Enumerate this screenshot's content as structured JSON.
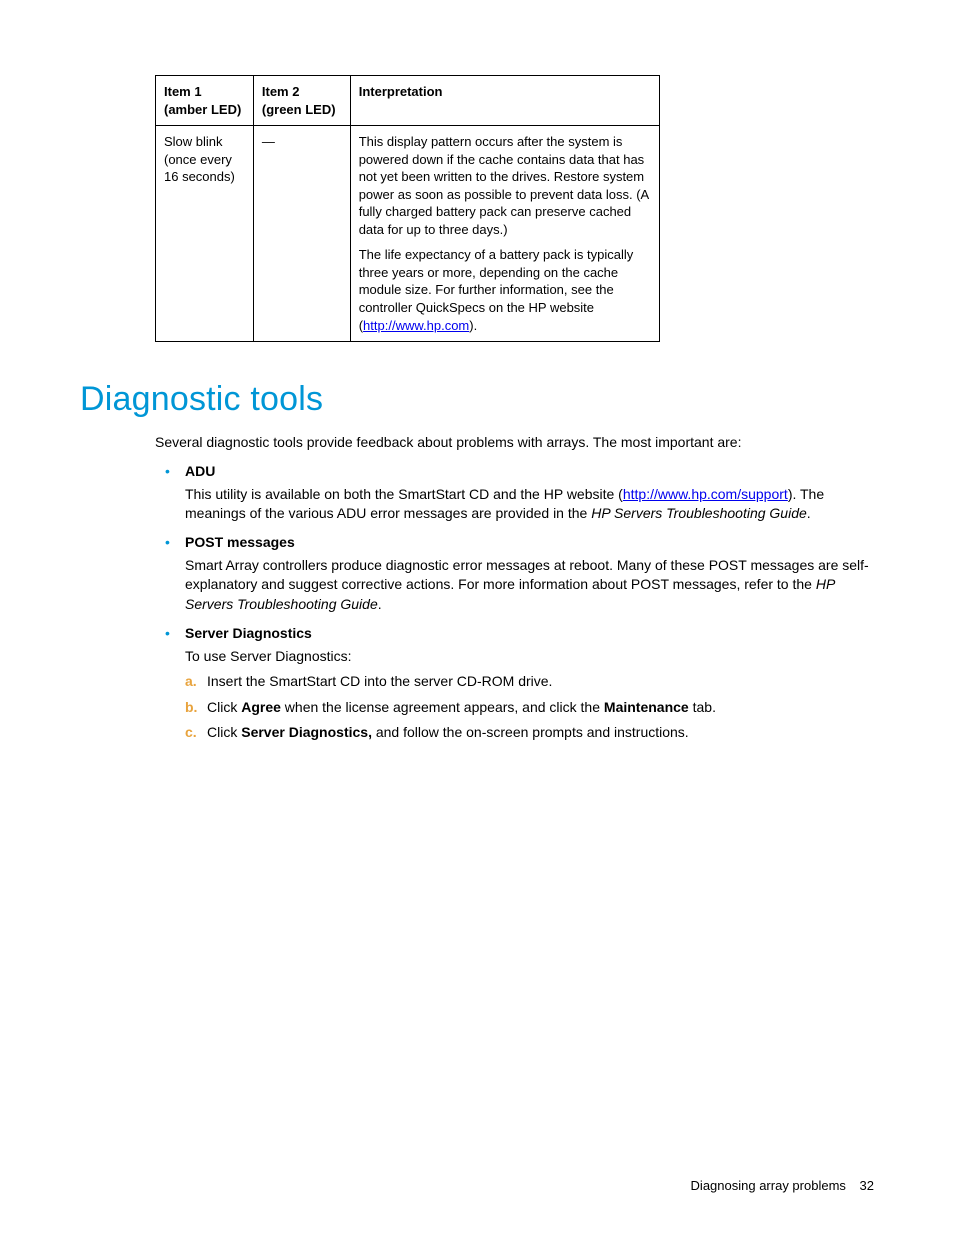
{
  "table": {
    "headers": {
      "col1": "Item 1 (amber LED)",
      "col2": "Item 2 (green LED)",
      "col3": "Interpretation"
    },
    "row": {
      "item1": "Slow blink (once every 16 seconds)",
      "item2": "—",
      "para1": "This display pattern occurs after the system is powered down if the cache contains data that has not yet been written to the drives. Restore system power as soon as possible to prevent data loss. (A fully charged battery pack can preserve cached data for up to three days.)",
      "para2_pre": "The life expectancy of a battery pack is typically three years or more, depending on the cache module size. For further information, see the controller QuickSpecs on the HP website (",
      "para2_link": "http://www.hp.com",
      "para2_post": ")."
    }
  },
  "section": {
    "title": "Diagnostic tools",
    "intro": "Several diagnostic tools provide feedback about problems with arrays. The most important are:"
  },
  "tools": {
    "adu": {
      "title": "ADU",
      "pre": "This utility is available on both the SmartStart CD and the HP website (",
      "link": "http://www.hp.com/support",
      "mid": "). The meanings of the various ADU error messages are provided in the ",
      "italic": "HP Servers Troubleshooting Guide",
      "post": "."
    },
    "post": {
      "title": "POST messages",
      "pre": "Smart Array controllers produce diagnostic error messages at reboot. Many of these POST messages are self-explanatory and suggest corrective actions. For more information about POST messages, refer to the ",
      "italic": "HP Servers Troubleshooting Guide",
      "post": "."
    },
    "server": {
      "title": "Server Diagnostics",
      "lead": "To use Server Diagnostics:",
      "step_a": "Insert the SmartStart CD into the server CD-ROM drive.",
      "step_b_pre": "Click ",
      "step_b_bold1": "Agree",
      "step_b_mid": " when the license agreement appears, and click the ",
      "step_b_bold2": "Maintenance",
      "step_b_post": " tab.",
      "step_c_pre": "Click ",
      "step_c_bold": "Server Diagnostics,",
      "step_c_post": " and follow the on-screen prompts and instructions."
    }
  },
  "footer": {
    "text": "Diagnosing array problems",
    "page": "32"
  },
  "style": {
    "accent_color": "#0096d6",
    "step_marker_color": "#e8a33d",
    "link_color": "#0000ee",
    "body_fontsize": 14,
    "title_fontsize": 34
  }
}
